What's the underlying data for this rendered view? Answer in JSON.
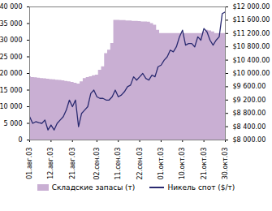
{
  "chart_data": {
    "type": "combo",
    "categories": [
      "01.авг.03",
      null,
      null,
      null,
      null,
      null,
      null,
      "12.авг.03",
      null,
      null,
      null,
      null,
      null,
      null,
      "21.авг.03",
      null,
      null,
      null,
      null,
      null,
      null,
      null,
      "02.сен.03",
      null,
      null,
      null,
      null,
      null,
      null,
      "11.сен.03",
      null,
      null,
      null,
      null,
      null,
      null,
      "22.сен.03",
      null,
      null,
      null,
      null,
      null,
      null,
      "01.окт.03",
      null,
      null,
      null,
      null,
      null,
      null,
      "10.окт.03",
      null,
      null,
      null,
      null,
      null,
      null,
      "21.окт.03",
      null,
      null,
      null,
      null,
      null,
      null,
      "30.окт.03"
    ],
    "series": [
      {
        "name": "Складские запасы (т)",
        "type": "area",
        "color": "#c9afd3",
        "values": [
          19000,
          18800,
          18700,
          18600,
          18500,
          18400,
          18300,
          18200,
          18100,
          18000,
          17900,
          17800,
          17600,
          17500,
          17300,
          17100,
          16800,
          17500,
          18500,
          18800,
          19000,
          19300,
          19500,
          21000,
          22000,
          26000,
          27000,
          29000,
          36000,
          36000,
          35900,
          35900,
          35800,
          35800,
          35700,
          35700,
          35600,
          35500,
          35500,
          35400,
          35000,
          34500,
          33000,
          32000,
          32000,
          32000,
          32000,
          32000,
          32000,
          32000,
          32000,
          32000,
          32000,
          32000,
          32000,
          32000,
          32000,
          32500,
          33000,
          32800,
          32500,
          32000,
          32000,
          32000,
          32000
        ]
      },
      {
        "name": "Никель спот ($/т)",
        "type": "line",
        "axis": "y2",
        "color": "#2a2a70",
        "values": [
          8700,
          8500,
          8550,
          8520,
          8500,
          8600,
          8300,
          8450,
          8300,
          8500,
          8600,
          8700,
          8900,
          9200,
          9000,
          9200,
          8400,
          8800,
          8900,
          9000,
          9400,
          9500,
          9300,
          9250,
          9250,
          9200,
          9200,
          9300,
          9500,
          9300,
          9350,
          9450,
          9600,
          9650,
          9900,
          9800,
          9900,
          10000,
          9850,
          9800,
          9950,
          9900,
          10200,
          10250,
          10400,
          10500,
          10700,
          10650,
          10800,
          11100,
          11300,
          10850,
          10900,
          10900,
          10800,
          11100,
          11000,
          11350,
          11250,
          11000,
          10850,
          11000,
          11100,
          11800,
          11850
        ]
      }
    ],
    "ylim": [
      0,
      40000
    ],
    "yticks": [
      0,
      {
        "value": 5000,
        "label": "5 000"
      },
      {
        "value": 10000,
        "label": "10 000"
      },
      {
        "value": 15000,
        "label": "15 000"
      },
      {
        "value": 20000,
        "label": "20 000"
      },
      {
        "value": 25000,
        "label": "25 000"
      },
      {
        "value": 30000,
        "label": "30 000"
      },
      {
        "value": 35000,
        "label": "35 000"
      },
      {
        "value": 40000,
        "label": "40 000"
      }
    ],
    "y2lim": [
      8000,
      12000
    ],
    "y2ticks": [
      {
        "value": 8000,
        "label": "$8 000.00"
      },
      {
        "value": 8400,
        "label": "$8 400.00"
      },
      {
        "value": 8800,
        "label": "$8 800.00"
      },
      {
        "value": 9200,
        "label": "$9 200.00"
      },
      {
        "value": 9600,
        "label": "$9 600.00"
      },
      {
        "value": 10000,
        "label": "$10 000.00"
      },
      {
        "value": 10400,
        "label": "$10 400.00"
      },
      {
        "value": 10800,
        "label": "$10 800.00"
      },
      {
        "value": 11200,
        "label": "$11 200.00"
      },
      {
        "value": 11600,
        "label": "$11 600.00"
      },
      {
        "value": 12000,
        "label": "$12 000.00"
      }
    ],
    "legend": "bottom"
  }
}
